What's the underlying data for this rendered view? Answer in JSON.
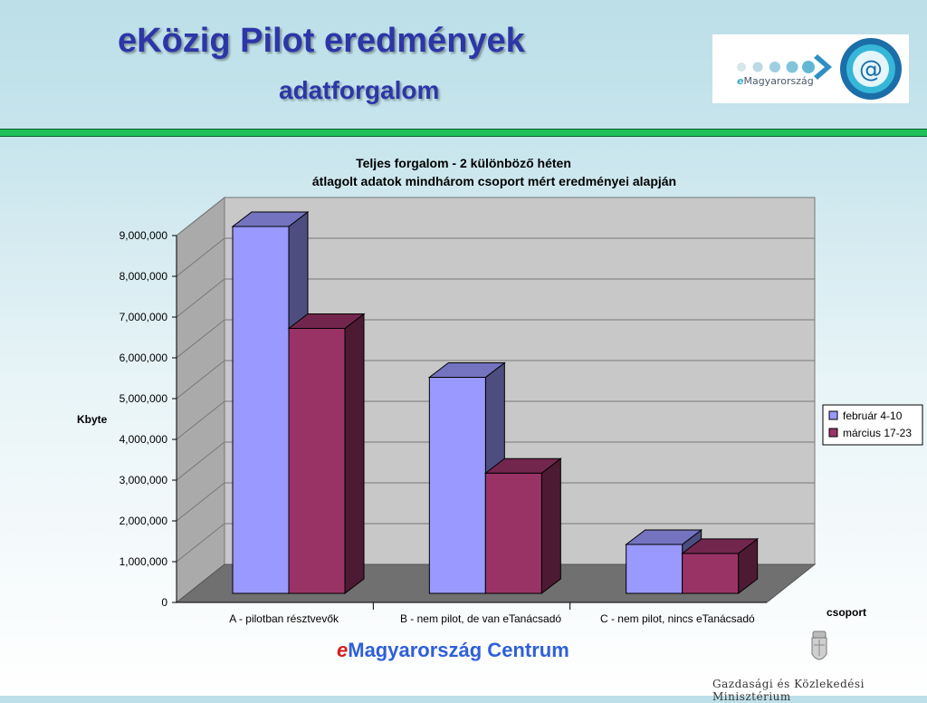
{
  "slide": {
    "title": "eKözig Pilot eredmények",
    "subtitle": "adatforgalom",
    "logo_prefix": "e",
    "logo_text": "Magyarország",
    "footer_prefix": "e",
    "footer_text": "Magyarország Centrum",
    "ministry": "Gazdasági és Közlekedési Minisztérium",
    "colors": {
      "title": "#2d36a8",
      "divider": "#1fc15a",
      "footer": "#2f5fd9",
      "footer_e": "#d21d1d"
    }
  },
  "chart_data": {
    "type": "bar",
    "style": "3d-clustered-column",
    "title_line1": "Teljes forgalom - 2 különböző héten",
    "title_line2": "átlagolt adatok mindhárom csoport mért eredményei alapján",
    "ylabel": "Kbyte",
    "xlabel": "csoport",
    "categories": [
      "A - pilotban résztvevők",
      "B - nem pilot, de van eTanácsadó",
      "C - nem pilot, nincs eTanácsadó"
    ],
    "series": [
      {
        "name": "február 4-10",
        "color": "#9999ff",
        "values": [
          9000000,
          5300000,
          1200000
        ]
      },
      {
        "name": "március 17-23",
        "color": "#993366",
        "values": [
          6500000,
          2950000,
          980000
        ]
      }
    ],
    "ylim": [
      0,
      9000000
    ],
    "ytick_labels": [
      "0",
      "1,000,000",
      "2,000,000",
      "3,000,000",
      "4,000,000",
      "5,000,000",
      "6,000,000",
      "7,000,000",
      "8,000,000",
      "9,000,000"
    ],
    "grid": true,
    "legend_position": "right"
  }
}
